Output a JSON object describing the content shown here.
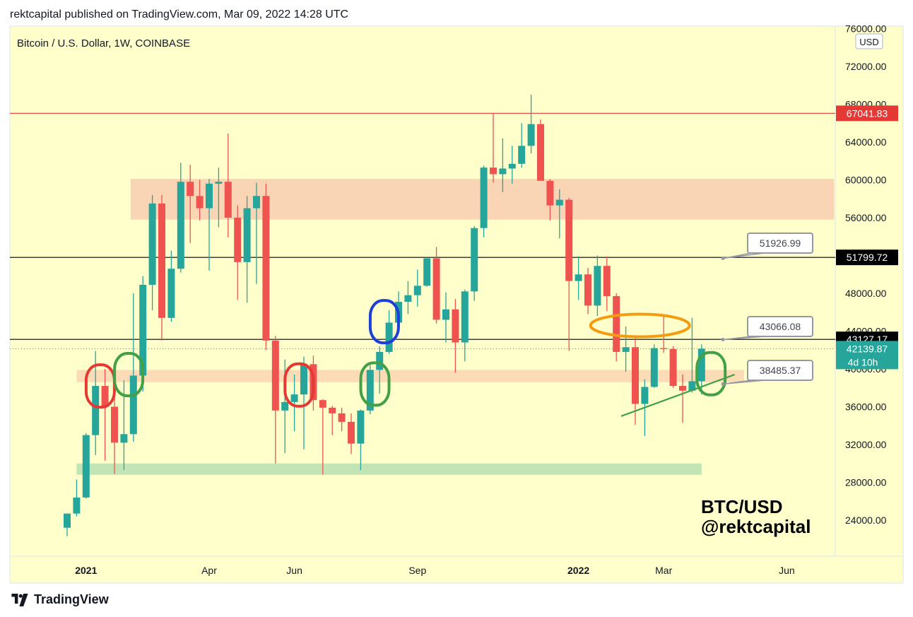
{
  "header": {
    "text": "rektcapital published on TradingView.com, Mar 09, 2022 14:28 UTC"
  },
  "footer": {
    "logo_text": "TradingView"
  },
  "chart": {
    "symbol_title": "Bitcoin / U.S. Dollar, 1W, COINBASE",
    "currency_badge": "USD",
    "watermark_line1": "BTC/USD",
    "watermark_line2": "@rektcapital",
    "countdown": "4d 10h"
  },
  "colors": {
    "background": "#ffffcc",
    "up": "#26a69a",
    "down": "#ef5350",
    "resistance_zone": "#f8cdb0",
    "support_zone": "#b9e0b0",
    "price_line": "#26a69a",
    "red_line": "#e53935",
    "black_line": "#000000"
  },
  "chart_data": {
    "type": "candlestick",
    "title": "Bitcoin / U.S. Dollar, 1W, COINBASE",
    "ylim": [
      22000,
      76000
    ],
    "price_axis_ticks": [
      "76000.00",
      "72000.00",
      "68000.00",
      "64000.00",
      "60000.00",
      "56000.00",
      "52000.00",
      "48000.00",
      "44000.00",
      "40000.00",
      "36000.00",
      "32000.00",
      "28000.00",
      "24000.00"
    ],
    "time_axis_labels": [
      {
        "label": "2021",
        "bold": true,
        "week": 2
      },
      {
        "label": "Apr",
        "bold": false,
        "week": 15
      },
      {
        "label": "Jun",
        "bold": false,
        "week": 24
      },
      {
        "label": "Sep",
        "bold": false,
        "week": 37
      },
      {
        "label": "2022",
        "bold": true,
        "week": 54
      },
      {
        "label": "Mar",
        "bold": false,
        "week": 63
      },
      {
        "label": "Jun",
        "bold": false,
        "week": 76
      }
    ],
    "candles": [
      {
        "o": 23200,
        "h": 24700,
        "l": 22300,
        "c": 24700
      },
      {
        "o": 24700,
        "h": 28300,
        "l": 24400,
        "c": 26400
      },
      {
        "o": 26400,
        "h": 33200,
        "l": 26300,
        "c": 33000
      },
      {
        "o": 33000,
        "h": 41900,
        "l": 30900,
        "c": 38200
      },
      {
        "o": 38200,
        "h": 40000,
        "l": 30300,
        "c": 36000
      },
      {
        "o": 36000,
        "h": 38400,
        "l": 28900,
        "c": 32200
      },
      {
        "o": 32200,
        "h": 38800,
        "l": 29300,
        "c": 33100
      },
      {
        "o": 33100,
        "h": 48000,
        "l": 32300,
        "c": 39300
      },
      {
        "o": 39300,
        "h": 49800,
        "l": 37600,
        "c": 48900
      },
      {
        "o": 48900,
        "h": 58400,
        "l": 46200,
        "c": 57500
      },
      {
        "o": 57500,
        "h": 58400,
        "l": 43000,
        "c": 45400
      },
      {
        "o": 45400,
        "h": 52500,
        "l": 45000,
        "c": 50600
      },
      {
        "o": 50600,
        "h": 61800,
        "l": 50200,
        "c": 59800
      },
      {
        "o": 59800,
        "h": 61600,
        "l": 53300,
        "c": 58300
      },
      {
        "o": 58300,
        "h": 60000,
        "l": 55700,
        "c": 57000
      },
      {
        "o": 57000,
        "h": 60100,
        "l": 50400,
        "c": 59600
      },
      {
        "o": 59600,
        "h": 61300,
        "l": 55000,
        "c": 59800
      },
      {
        "o": 59800,
        "h": 64900,
        "l": 53900,
        "c": 56000
      },
      {
        "o": 56000,
        "h": 57300,
        "l": 47300,
        "c": 51300
      },
      {
        "o": 51300,
        "h": 58300,
        "l": 47000,
        "c": 57000
      },
      {
        "o": 57000,
        "h": 59700,
        "l": 49000,
        "c": 58300
      },
      {
        "o": 58300,
        "h": 59600,
        "l": 42000,
        "c": 43000
      },
      {
        "o": 43000,
        "h": 43500,
        "l": 30000,
        "c": 35600
      },
      {
        "o": 35600,
        "h": 41000,
        "l": 31100,
        "c": 36500
      },
      {
        "o": 36500,
        "h": 39400,
        "l": 33400,
        "c": 37300
      },
      {
        "o": 37300,
        "h": 41300,
        "l": 31500,
        "c": 40500
      },
      {
        "o": 40500,
        "h": 41400,
        "l": 35600,
        "c": 36700
      },
      {
        "o": 36700,
        "h": 36800,
        "l": 28800,
        "c": 35900
      },
      {
        "o": 35900,
        "h": 36100,
        "l": 33000,
        "c": 35300
      },
      {
        "o": 35300,
        "h": 35900,
        "l": 33400,
        "c": 34400
      },
      {
        "o": 34400,
        "h": 35300,
        "l": 31000,
        "c": 32100
      },
      {
        "o": 32100,
        "h": 35700,
        "l": 29300,
        "c": 35600
      },
      {
        "o": 35600,
        "h": 40400,
        "l": 35200,
        "c": 39900
      },
      {
        "o": 39900,
        "h": 42400,
        "l": 37400,
        "c": 41800
      },
      {
        "o": 41800,
        "h": 46200,
        "l": 41600,
        "c": 44900
      },
      {
        "o": 44900,
        "h": 48200,
        "l": 44500,
        "c": 47100
      },
      {
        "o": 47100,
        "h": 49300,
        "l": 45800,
        "c": 47800
      },
      {
        "o": 47800,
        "h": 50500,
        "l": 46600,
        "c": 48800
      },
      {
        "o": 48800,
        "h": 51800,
        "l": 48700,
        "c": 51700
      },
      {
        "o": 51700,
        "h": 52900,
        "l": 44800,
        "c": 45200
      },
      {
        "o": 45200,
        "h": 48100,
        "l": 42800,
        "c": 46300
      },
      {
        "o": 46300,
        "h": 47400,
        "l": 39600,
        "c": 42800
      },
      {
        "o": 42800,
        "h": 48400,
        "l": 40800,
        "c": 48200
      },
      {
        "o": 48200,
        "h": 55100,
        "l": 47200,
        "c": 54900
      },
      {
        "o": 54900,
        "h": 61500,
        "l": 53900,
        "c": 61300
      },
      {
        "o": 61300,
        "h": 67000,
        "l": 59700,
        "c": 60600
      },
      {
        "o": 60600,
        "h": 64400,
        "l": 58700,
        "c": 61200
      },
      {
        "o": 61200,
        "h": 63600,
        "l": 59600,
        "c": 61700
      },
      {
        "o": 61700,
        "h": 66000,
        "l": 61300,
        "c": 63600
      },
      {
        "o": 63600,
        "h": 69000,
        "l": 62800,
        "c": 65900
      },
      {
        "o": 65900,
        "h": 66400,
        "l": 60400,
        "c": 59900
      },
      {
        "o": 59900,
        "h": 60100,
        "l": 55700,
        "c": 57300
      },
      {
        "o": 57300,
        "h": 59000,
        "l": 53800,
        "c": 57900
      },
      {
        "o": 57900,
        "h": 58100,
        "l": 41900,
        "c": 49300
      },
      {
        "o": 49300,
        "h": 51900,
        "l": 47300,
        "c": 50000
      },
      {
        "o": 50000,
        "h": 50700,
        "l": 45800,
        "c": 46700
      },
      {
        "o": 46700,
        "h": 52000,
        "l": 45600,
        "c": 50900
      },
      {
        "o": 50900,
        "h": 51900,
        "l": 46100,
        "c": 47700
      },
      {
        "o": 47700,
        "h": 48000,
        "l": 40800,
        "c": 41800
      },
      {
        "o": 41800,
        "h": 44500,
        "l": 39700,
        "c": 42300
      },
      {
        "o": 42300,
        "h": 43400,
        "l": 34100,
        "c": 36300
      },
      {
        "o": 36300,
        "h": 38900,
        "l": 32900,
        "c": 38100
      },
      {
        "o": 38100,
        "h": 42600,
        "l": 38000,
        "c": 42200
      },
      {
        "o": 42200,
        "h": 45800,
        "l": 41700,
        "c": 42100
      },
      {
        "o": 42100,
        "h": 42400,
        "l": 38000,
        "c": 38200
      },
      {
        "o": 38200,
        "h": 39400,
        "l": 34300,
        "c": 37700
      },
      {
        "o": 37700,
        "h": 45400,
        "l": 37500,
        "c": 38700
      },
      {
        "o": 38700,
        "h": 42600,
        "l": 37300,
        "c": 42140
      }
    ],
    "horizontal_lines": [
      {
        "price": 67041.83,
        "label": "67041.83",
        "color": "#e53935",
        "label_bg": "#e53935",
        "label_color": "#ffffff"
      },
      {
        "price": 51799.72,
        "label": "51799.72",
        "color": "#000000",
        "label_bg": "#000000",
        "label_color": "#ffffff"
      },
      {
        "price": 43127.17,
        "label": "43127.17",
        "color": "#000000",
        "label_bg": "#000000",
        "label_color": "#ffffff"
      }
    ],
    "current_price": {
      "price": 42139.87,
      "label": "42139.87"
    },
    "zones": [
      {
        "kind": "resistance",
        "top": 60100,
        "bottom": 55800,
        "from_week": 6.7,
        "to_week": 81
      },
      {
        "kind": "support",
        "top": 39900,
        "bottom": 38600,
        "from_week": 1,
        "to_week": 71.5
      },
      {
        "kind": "support",
        "top": 30000,
        "bottom": 28800,
        "from_week": 1,
        "to_week": 67
      }
    ],
    "callouts": [
      {
        "label": "51926.99",
        "anchor_week": 70,
        "anchor_price": 51700
      },
      {
        "label": "43066.08",
        "anchor_week": 70,
        "anchor_price": 43100
      },
      {
        "label": "38485.37",
        "anchor_week": 70,
        "anchor_price": 38400
      }
    ],
    "trendline": {
      "from_week": 58.5,
      "from_price": 35000,
      "to_week": 70.5,
      "to_price": 39400
    },
    "annotations": [
      {
        "shape": "circle",
        "color": "#e53935",
        "week": 3.5,
        "price": 38200
      },
      {
        "shape": "circle",
        "color": "#43a047",
        "week": 6.5,
        "price": 39400
      },
      {
        "shape": "circle",
        "color": "#e53935",
        "week": 24.5,
        "price": 38300
      },
      {
        "shape": "circle",
        "color": "#43a047",
        "week": 32.5,
        "price": 38400
      },
      {
        "shape": "circle",
        "color": "#1e3fd8",
        "week": 33.5,
        "price": 45000
      },
      {
        "shape": "ellipse",
        "color": "#f39c12",
        "week": 60.5,
        "price": 44600
      },
      {
        "shape": "circle",
        "color": "#43a047",
        "week": 68,
        "price": 39500
      }
    ]
  }
}
